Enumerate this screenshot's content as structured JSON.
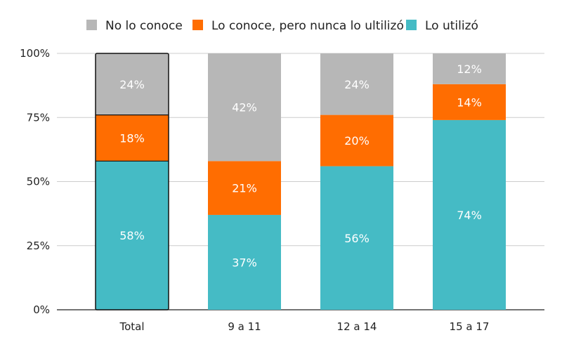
{
  "chart_data": {
    "type": "bar",
    "stacked": true,
    "categories": [
      "Total",
      "9 a 11",
      "12 a 14",
      "15 a 17"
    ],
    "series": [
      {
        "name": "Lo utilizó",
        "color": "#45bbc5",
        "values": [
          58,
          37,
          56,
          74
        ],
        "labels": [
          "58%",
          "37%",
          "56%",
          "74%"
        ]
      },
      {
        "name": "Lo conoce, pero nunca lo ultilizó",
        "color": "#ff6d01",
        "values": [
          18,
          21,
          20,
          14
        ],
        "labels": [
          "18%",
          "21%",
          "20%",
          "14%"
        ]
      },
      {
        "name": "No lo conoce",
        "color": "#b7b7b7",
        "values": [
          24,
          42,
          24,
          12
        ],
        "labels": [
          "24%",
          "42%",
          "24%",
          "12%"
        ]
      }
    ],
    "legend_order": [
      2,
      1,
      0
    ],
    "legend_position": "top",
    "y_ticks": [
      0,
      25,
      50,
      75,
      100
    ],
    "y_tick_labels": [
      "0%",
      "25%",
      "50%",
      "75%",
      "100%"
    ],
    "ylim": [
      0,
      100
    ],
    "grid": true,
    "highlighted_category": "Total"
  }
}
